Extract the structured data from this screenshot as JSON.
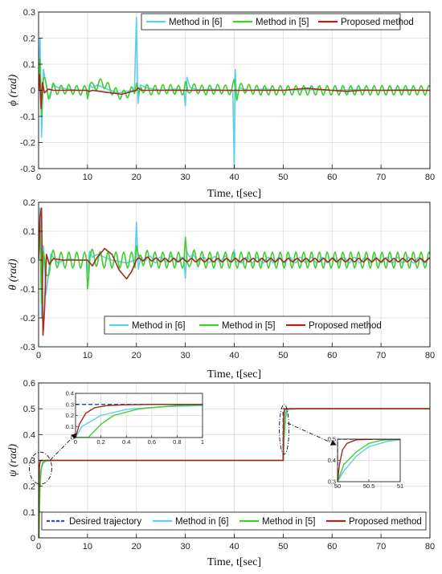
{
  "colors": {
    "desired": "#2b4fc9",
    "m6": "#5ccdf0",
    "m5": "#3fcf2e",
    "proposed": "#a8281c",
    "grid": "#d9d9d9"
  },
  "chart_data": [
    {
      "type": "line",
      "ylabel": "ϕ (rad)",
      "xlabel": "Time, t[sec]",
      "xlim": [
        0,
        80
      ],
      "ylim": [
        -0.3,
        0.3
      ],
      "xticks": [
        0,
        10,
        20,
        30,
        40,
        50,
        60,
        70,
        80
      ],
      "yticks": [
        -0.3,
        -0.2,
        -0.1,
        0,
        0.1,
        0.2,
        0.3
      ],
      "grid": true,
      "legend": {
        "placement": "top-right",
        "entries": [
          "Method in [6]",
          "Method in [5]",
          "Proposed method"
        ]
      },
      "series": [
        {
          "name": "Method in [6]",
          "color_key": "m6",
          "x": [
            0,
            0.3,
            0.6,
            1,
            2,
            3,
            4,
            6,
            8,
            9.8,
            10,
            10.4,
            11,
            12,
            14,
            16,
            19.6,
            20,
            20.3,
            20.8,
            22,
            25,
            28,
            29.7,
            30,
            30.3,
            31,
            33,
            35,
            38,
            39.7,
            40,
            40.2,
            40.5,
            41,
            43,
            46,
            50,
            55,
            60,
            65,
            70,
            75,
            80
          ],
          "y": [
            0,
            0.2,
            -0.18,
            0.08,
            -0.03,
            0.02,
            0.01,
            0.005,
            0,
            0,
            -0.03,
            0.02,
            0.01,
            0.02,
            0.005,
            -0.01,
            0,
            0.28,
            -0.05,
            0.02,
            0.01,
            0,
            0.005,
            0,
            -0.06,
            0.05,
            0.01,
            0,
            0.005,
            0,
            0,
            -0.3,
            0.08,
            -0.04,
            0.01,
            0,
            0.005,
            0,
            0.003,
            0,
            0.003,
            0,
            0.003,
            0
          ]
        },
        {
          "name": "Method in [5]",
          "color_key": "m5",
          "x": [
            0,
            0.3,
            0.6,
            1,
            2,
            3,
            4,
            6,
            8,
            9.8,
            10,
            10.5,
            11,
            13,
            15,
            17,
            19.6,
            20,
            20.5,
            21,
            23,
            26,
            29.6,
            30,
            30.5,
            31,
            34,
            37,
            39.6,
            40,
            40.5,
            41,
            45,
            50,
            55,
            60,
            65,
            70,
            75,
            80
          ],
          "y": [
            0,
            0.12,
            -0.1,
            0.05,
            -0.02,
            0.01,
            0,
            0.005,
            0,
            0,
            -0.02,
            0.03,
            0.01,
            0.03,
            0,
            -0.02,
            0,
            0.04,
            -0.03,
            0.01,
            0,
            0.005,
            0,
            0.02,
            -0.01,
            0.01,
            0,
            0.005,
            0,
            0.03,
            -0.02,
            0.01,
            0,
            0,
            0,
            0,
            0,
            0,
            0,
            0
          ],
          "oscillation": {
            "start": 1,
            "end": 80,
            "amplitude": 0.018,
            "period": 1.6
          }
        },
        {
          "name": "Proposed method",
          "color_key": "proposed",
          "x": [
            0,
            0.2,
            0.5,
            0.8,
            1.2,
            2,
            3,
            5,
            8,
            10,
            10.3,
            11,
            14,
            17,
            20,
            20.3,
            21,
            25,
            30,
            35,
            40,
            45,
            50,
            53,
            55,
            57,
            60,
            63,
            66,
            70,
            75,
            80
          ],
          "y": [
            0,
            0.06,
            -0.07,
            0.03,
            -0.01,
            0.005,
            0,
            0,
            0,
            0,
            -0.005,
            0,
            -0.008,
            -0.015,
            0,
            0.01,
            0,
            0,
            0,
            0,
            0,
            0,
            0,
            0.005,
            0.008,
            0.004,
            0,
            -0.004,
            0,
            0,
            0,
            0
          ]
        }
      ]
    },
    {
      "type": "line",
      "ylabel": "θ (rad)",
      "xlabel": "Time, t[sec]",
      "xlim": [
        0,
        80
      ],
      "ylim": [
        -0.3,
        0.2
      ],
      "xticks": [
        0,
        10,
        20,
        30,
        40,
        50,
        60,
        70,
        80
      ],
      "yticks": [
        -0.3,
        -0.2,
        -0.1,
        0,
        0.1,
        0.2
      ],
      "grid": true,
      "legend": {
        "placement": "bottom-center",
        "entries": [
          "Method in [6]",
          "Method in [5]",
          "Proposed method"
        ]
      },
      "series": [
        {
          "name": "Method in [6]",
          "color_key": "m6",
          "x": [
            0,
            0.3,
            0.6,
            1,
            1.5,
            2.5,
            4,
            6,
            8,
            9.8,
            10,
            10.4,
            11,
            12,
            15,
            18,
            19.7,
            20,
            20.4,
            21,
            24,
            27,
            29.7,
            30,
            30.3,
            31,
            34,
            38,
            39.8,
            40,
            40.3,
            41,
            45,
            50,
            55,
            60,
            65,
            70,
            75,
            80
          ],
          "y": [
            0,
            0.18,
            -0.2,
            0.05,
            -0.12,
            0.02,
            -0.01,
            0.005,
            0,
            0,
            -0.05,
            0.03,
            0.01,
            0.02,
            0,
            -0.01,
            0,
            0.13,
            -0.04,
            0.01,
            0,
            0.005,
            0,
            -0.06,
            0.04,
            0.01,
            0,
            0.005,
            0,
            0.03,
            -0.02,
            0,
            0,
            0,
            0,
            0,
            0,
            0,
            0,
            0
          ],
          "oscillation": {
            "start": 20,
            "end": 80,
            "amplitude": 0.01,
            "period": 2.2
          }
        },
        {
          "name": "Method in [5]",
          "color_key": "m5",
          "x": [
            0,
            0.3,
            0.6,
            1,
            1.5,
            2.5,
            4,
            6,
            8,
            9.8,
            10,
            10.5,
            11,
            13,
            15,
            17,
            19.7,
            20,
            20.5,
            21,
            24,
            27,
            29.7,
            30,
            30.4,
            31,
            34,
            38,
            40,
            42,
            46,
            50,
            55,
            60,
            65,
            70,
            75,
            80
          ],
          "y": [
            0,
            0.12,
            -0.15,
            0.03,
            -0.08,
            0.01,
            0,
            0,
            0,
            0,
            -0.08,
            0.02,
            0.01,
            0,
            0,
            0,
            0,
            0.07,
            -0.02,
            0.01,
            0,
            0,
            0,
            0.06,
            -0.03,
            0.01,
            0,
            0,
            0,
            0,
            0,
            0,
            0,
            0,
            0,
            0,
            0,
            0
          ],
          "oscillation": {
            "start": 1,
            "end": 80,
            "amplitude": 0.028,
            "period": 1.6
          }
        },
        {
          "name": "Proposed method",
          "color_key": "proposed",
          "x": [
            0,
            0.3,
            0.6,
            0.9,
            1.2,
            1.6,
            2.2,
            3,
            5,
            8,
            10,
            11,
            12,
            13.5,
            15,
            16.5,
            18,
            19,
            20,
            22,
            25,
            30,
            35,
            40,
            45,
            50,
            55,
            60,
            65,
            70,
            75,
            80
          ],
          "y": [
            0,
            0.15,
            0.18,
            -0.26,
            -0.18,
            0.02,
            -0.015,
            0.005,
            0,
            0,
            0,
            -0.02,
            0.01,
            0.04,
            0.02,
            -0.035,
            -0.065,
            -0.04,
            0,
            0.005,
            0,
            0,
            0,
            0,
            0,
            0,
            0,
            0,
            0,
            0,
            0,
            0
          ],
          "oscillation": {
            "start": 20,
            "end": 80,
            "amplitude": 0.006,
            "period": 1.8
          }
        }
      ]
    },
    {
      "type": "line",
      "ylabel": "ψ (rad)",
      "xlabel": "Time, t[sec]",
      "xlim": [
        0,
        80
      ],
      "ylim": [
        0,
        0.6
      ],
      "xticks": [
        0,
        10,
        20,
        30,
        40,
        50,
        60,
        70,
        80
      ],
      "yticks": [
        0,
        0.1,
        0.2,
        0.3,
        0.4,
        0.5,
        0.6
      ],
      "grid": true,
      "legend": {
        "placement": "bottom",
        "entries": [
          "Desired trajectory",
          "Method in [6]",
          "Method in [5]",
          "Proposed method"
        ]
      },
      "series": [
        {
          "name": "Desired trajectory",
          "color_key": "desired",
          "dashed": true,
          "x": [
            0,
            50,
            50,
            80
          ],
          "y": [
            0.3,
            0.3,
            0.5,
            0.5
          ]
        },
        {
          "name": "Method in [6]",
          "color_key": "m6",
          "x": [
            0,
            0.05,
            0.2,
            0.4,
            0.7,
            1,
            1.5,
            3,
            50,
            50.1,
            50.3,
            50.5,
            50.8,
            51,
            53,
            80
          ],
          "y": [
            0,
            0.1,
            0.2,
            0.255,
            0.28,
            0.29,
            0.297,
            0.3,
            0.3,
            0.35,
            0.42,
            0.465,
            0.49,
            0.497,
            0.5,
            0.5
          ]
        },
        {
          "name": "Method in [5]",
          "color_key": "m5",
          "x": [
            0,
            0.1,
            0.2,
            0.3,
            0.5,
            0.8,
            1,
            1.5,
            3,
            50,
            50.1,
            50.3,
            50.5,
            50.7,
            51,
            53,
            80
          ],
          "y": [
            0,
            0,
            0.12,
            0.2,
            0.26,
            0.29,
            0.295,
            0.299,
            0.3,
            0.3,
            0.38,
            0.44,
            0.48,
            0.495,
            0.5,
            0.5,
            0.5
          ]
        },
        {
          "name": "Proposed method",
          "color_key": "proposed",
          "x": [
            0,
            0.03,
            0.08,
            0.15,
            0.25,
            0.4,
            0.6,
            1,
            50,
            50.03,
            50.08,
            50.15,
            50.3,
            50.6,
            51,
            80
          ],
          "y": [
            0,
            0.12,
            0.22,
            0.27,
            0.29,
            0.297,
            0.3,
            0.3,
            0.3,
            0.38,
            0.45,
            0.48,
            0.497,
            0.5,
            0.5,
            0.5
          ]
        }
      ],
      "insets": [
        {
          "xlim": [
            0,
            1
          ],
          "ylim": [
            0,
            0.4
          ],
          "xticks": [
            0,
            0.2,
            0.4,
            0.6,
            0.8,
            1
          ],
          "yticks": [
            0,
            0.1,
            0.2,
            0.3,
            0.4
          ]
        },
        {
          "xlim": [
            50,
            51
          ],
          "ylim": [
            0.3,
            0.5
          ],
          "xticks": [
            50,
            50.5,
            51
          ],
          "yticks": [
            0.3,
            0.4,
            0.5
          ]
        }
      ]
    }
  ]
}
